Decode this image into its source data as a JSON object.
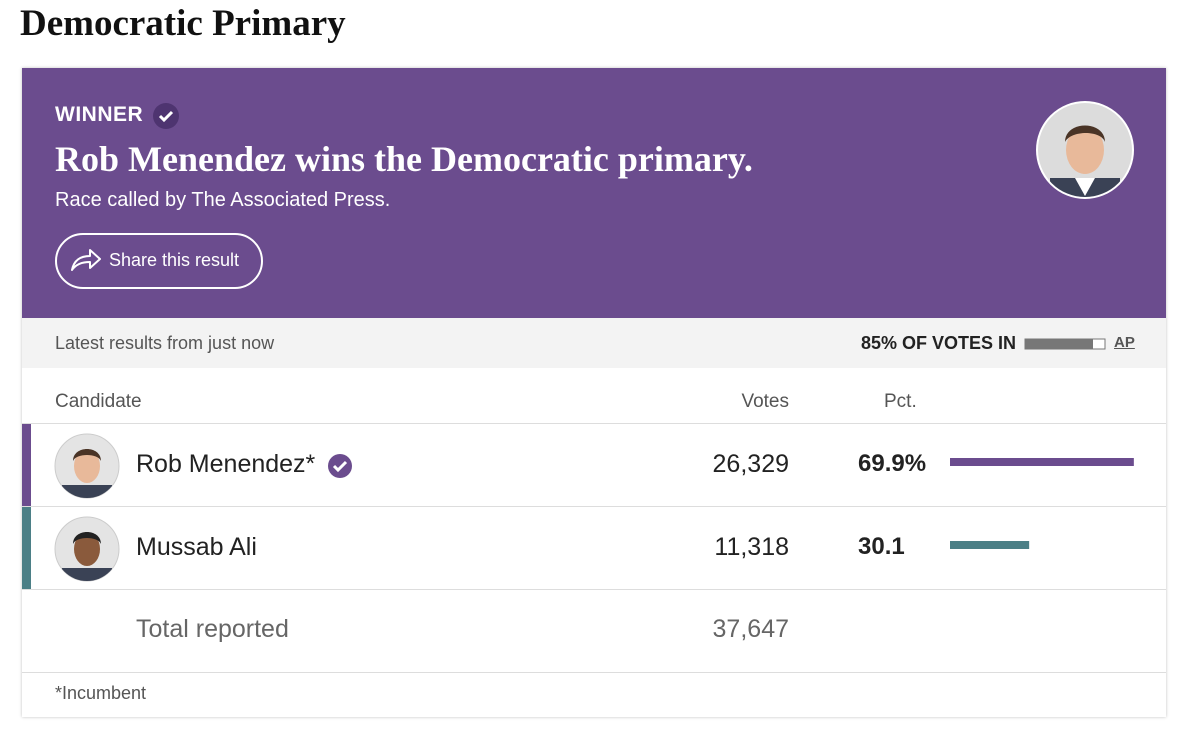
{
  "page_title": "Democratic Primary",
  "banner": {
    "status": "WINNER",
    "headline": "Rob Menendez wins the Democratic primary.",
    "subtitle": "Race called by The Associated Press.",
    "share_button": "Share this result"
  },
  "status_bar": {
    "updated": "Latest results from just now",
    "reporting_label": "85% OF VOTES IN",
    "reporting_pct": 85,
    "source": "AP"
  },
  "table": {
    "columns": [
      "Candidate",
      "Votes",
      "Pct."
    ],
    "rows": [
      {
        "name": "Rob Menendez*",
        "votes": "26,329",
        "pct": 69.9,
        "pct_label": "69.9%",
        "color": "#6b4c8e",
        "winner": true
      },
      {
        "name": "Mussab Ali",
        "votes": "11,318",
        "pct": 30.1,
        "color": "#4b7f86",
        "winner": false
      }
    ],
    "total": {
      "label": "Total reported",
      "votes": "37,647"
    }
  },
  "footnote": "*Incumbent"
}
